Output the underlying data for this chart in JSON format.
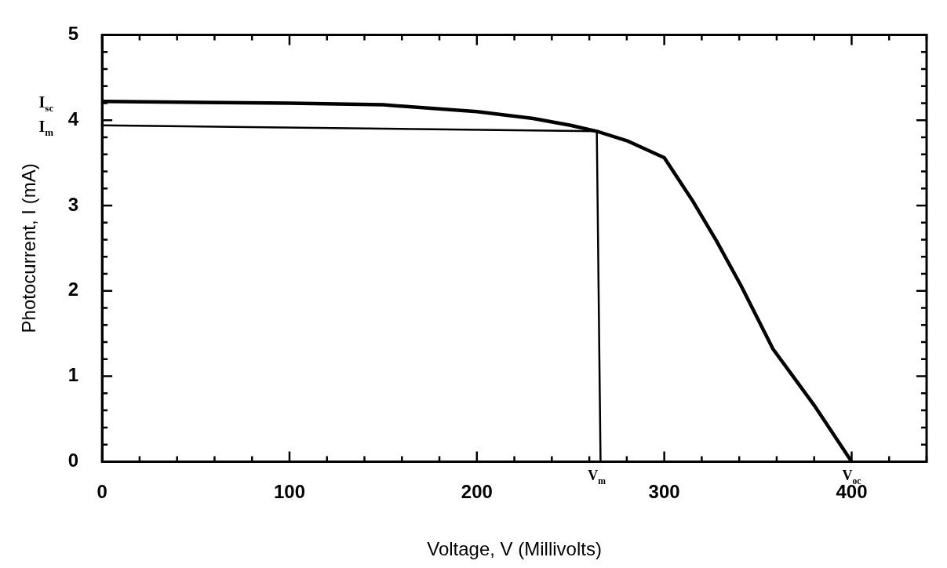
{
  "chart_data": {
    "type": "line",
    "xlabel": "Voltage, V (Millivolts)",
    "ylabel": "Photocurrent, I (mA)",
    "xlim": [
      0,
      440
    ],
    "ylim": [
      0,
      5
    ],
    "xticks": [
      0,
      {
        "value": 20,
        "label": null
      },
      {
        "value": 40,
        "label": null
      },
      {
        "value": 60,
        "label": null
      },
      {
        "value": 80,
        "label": null
      },
      100,
      {
        "value": 120,
        "label": null
      },
      {
        "value": 140,
        "label": null
      },
      {
        "value": 160,
        "label": null
      },
      {
        "value": 180,
        "label": null
      },
      200,
      {
        "value": 220,
        "label": null
      },
      {
        "value": 240,
        "label": null
      },
      {
        "value": 260,
        "label": null
      },
      {
        "value": 280,
        "label": null
      },
      300,
      {
        "value": 320,
        "label": null
      },
      {
        "value": 340,
        "label": null
      },
      {
        "value": 360,
        "label": null
      },
      {
        "value": 380,
        "label": null
      },
      400,
      {
        "value": 420,
        "label": null
      },
      {
        "value": 440,
        "label": null
      }
    ],
    "yticks": [
      0,
      {
        "value": 0.2,
        "label": null
      },
      {
        "value": 0.4,
        "label": null
      },
      {
        "value": 0.6,
        "label": null
      },
      {
        "value": 0.8,
        "label": null
      },
      1,
      {
        "value": 1.2,
        "label": null
      },
      {
        "value": 1.4,
        "label": null
      },
      {
        "value": 1.6,
        "label": null
      },
      {
        "value": 1.8,
        "label": null
      },
      2,
      {
        "value": 2.2,
        "label": null
      },
      {
        "value": 2.4,
        "label": null
      },
      {
        "value": 2.6,
        "label": null
      },
      {
        "value": 2.8,
        "label": null
      },
      3,
      {
        "value": 3.2,
        "label": null
      },
      {
        "value": 3.4,
        "label": null
      },
      {
        "value": 3.6,
        "label": null
      },
      {
        "value": 3.8,
        "label": null
      },
      4,
      {
        "value": 4.2,
        "label": null
      },
      {
        "value": 4.4,
        "label": null
      },
      {
        "value": 4.6,
        "label": null
      },
      {
        "value": 4.8,
        "label": null
      },
      5
    ],
    "grid": false,
    "legend": false,
    "marker": "none",
    "line_style": "solid",
    "series": [
      {
        "color": "#000000",
        "x": [
          0,
          100,
          150,
          200,
          230,
          250,
          264,
          280,
          300,
          315,
          328,
          341,
          358,
          380,
          400
        ],
        "values": [
          4.22,
          4.2,
          4.18,
          4.1,
          4.02,
          3.94,
          3.87,
          3.76,
          3.56,
          3.06,
          2.58,
          2.06,
          1.32,
          0.66,
          0
        ]
      },
      {
        "color": "#000000",
        "x": [
          0,
          264,
          266
        ],
        "values": [
          3.94,
          3.87,
          0
        ]
      }
    ],
    "annotations": [
      "I$_{sc}$",
      "I$_{m}$",
      {
        "text": "V$_{m}$",
        "x": 264,
        "y": 0
      },
      {
        "text": "V$_{oc}$",
        "x": 400,
        "y": 0
      }
    ]
  }
}
